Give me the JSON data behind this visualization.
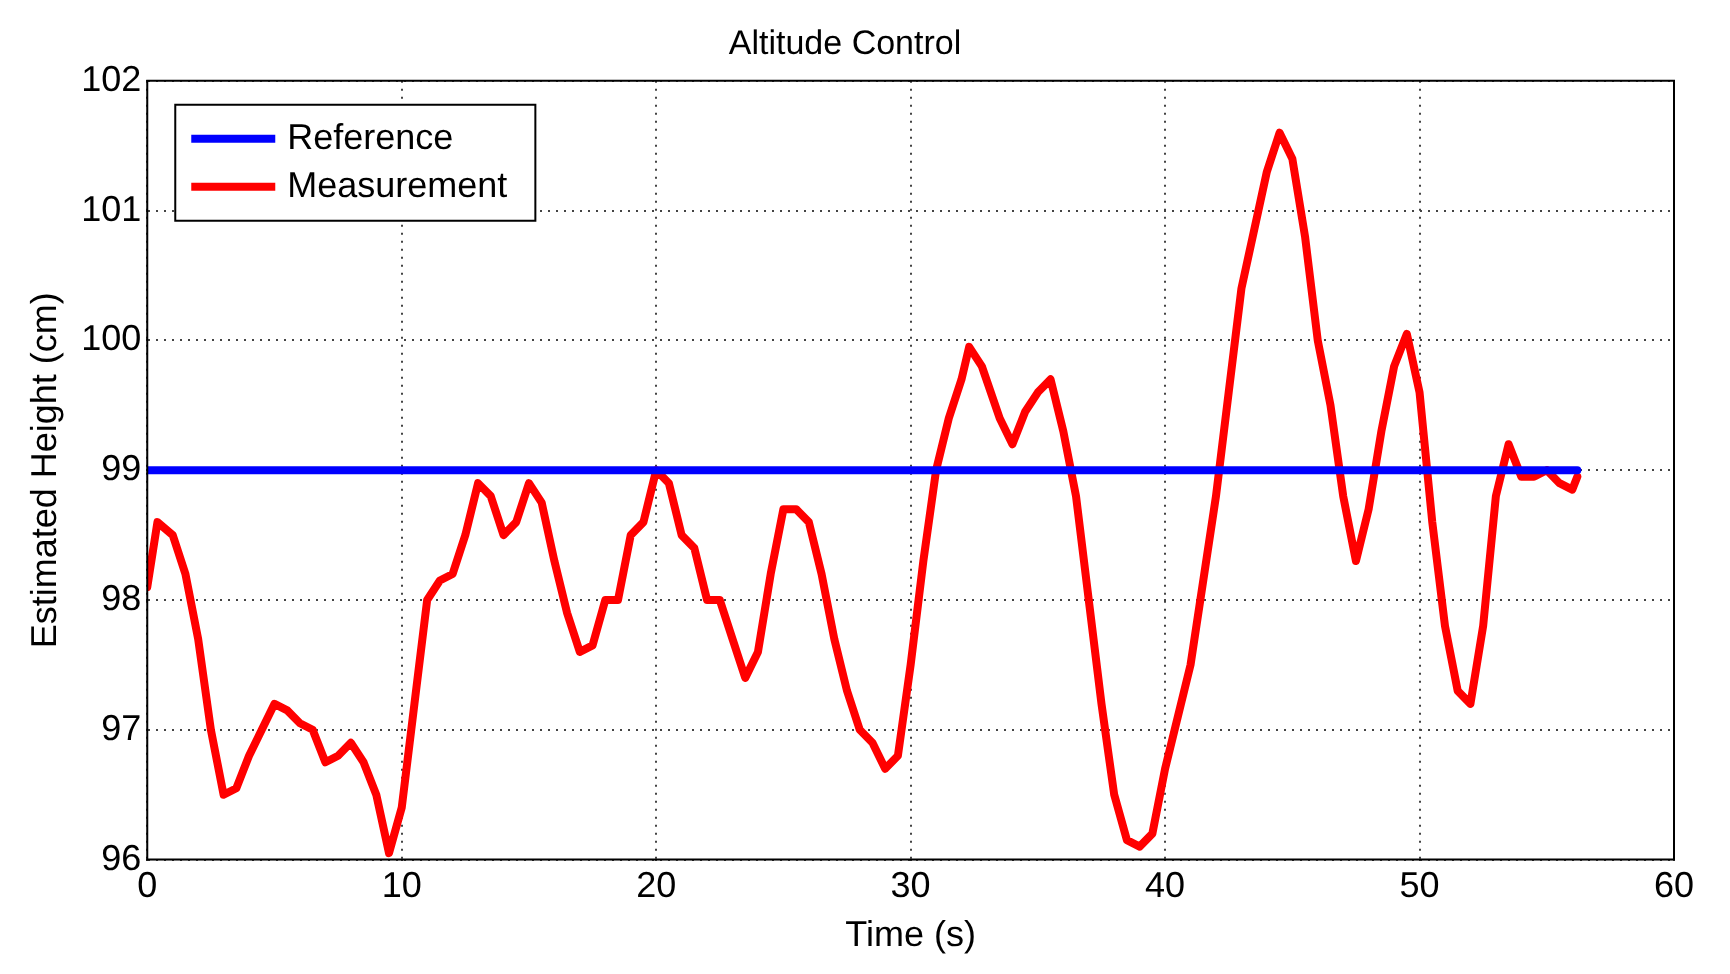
{
  "chart_data": {
    "type": "line",
    "title": "Altitude Control",
    "xlabel": "Time (s)",
    "ylabel": "Estimated Height (cm)",
    "xlim": [
      0,
      60
    ],
    "xticks": [
      0,
      10,
      20,
      30,
      40,
      50,
      60
    ],
    "ylim": [
      96,
      102
    ],
    "yticks": [
      96,
      97,
      98,
      99,
      100,
      101,
      102
    ],
    "grid": true,
    "legend": "top left",
    "marker": "none",
    "line_style": "solid",
    "series": [
      {
        "name": "Reference",
        "color": "#0000ff",
        "x": [
          0,
          56.2
        ],
        "values": [
          99,
          99
        ]
      },
      {
        "name": "Measurement",
        "color": "#ff0000",
        "x": [
          0,
          0.4,
          1,
          1.5,
          2,
          2.5,
          3,
          3.5,
          4,
          4.5,
          5,
          5.5,
          6,
          6.5,
          7,
          7.5,
          8,
          8.5,
          9,
          9.5,
          10,
          10.5,
          11,
          11.5,
          12,
          12.5,
          13,
          13.5,
          14,
          14.5,
          15,
          15.5,
          16,
          16.5,
          17,
          17.5,
          18,
          18.5,
          19,
          19.5,
          20,
          20.5,
          21,
          21.5,
          22,
          22.5,
          23,
          23.5,
          24,
          24.5,
          25,
          25.5,
          26,
          26.5,
          27,
          27.5,
          28,
          28.5,
          29,
          29.5,
          30,
          30.5,
          31,
          31.5,
          32,
          32.3,
          32.8,
          33.5,
          34,
          34.5,
          35,
          35.5,
          36,
          36.5,
          37,
          37.5,
          38,
          38.5,
          39,
          39.5,
          40,
          41,
          42,
          42.5,
          43,
          44,
          44.5,
          45,
          45.5,
          46,
          46.5,
          47,
          47.5,
          48,
          48.5,
          49,
          49.5,
          50,
          50.5,
          51,
          51.5,
          52,
          52.5,
          53,
          53.5,
          54,
          54.5,
          55,
          55.5,
          56,
          56.2
        ],
        "values": [
          98.1,
          98.6,
          98.5,
          98.2,
          97.7,
          97.0,
          96.5,
          96.55,
          96.8,
          97.0,
          97.2,
          97.15,
          97.05,
          97.0,
          96.75,
          96.8,
          96.9,
          96.75,
          96.5,
          96.05,
          96.4,
          97.2,
          98.0,
          98.15,
          98.2,
          98.5,
          98.9,
          98.8,
          98.5,
          98.6,
          98.9,
          98.75,
          98.3,
          97.9,
          97.6,
          97.65,
          98.0,
          98.0,
          98.5,
          98.6,
          99.0,
          98.9,
          98.5,
          98.4,
          98.0,
          98.0,
          97.7,
          97.4,
          97.6,
          98.2,
          98.7,
          98.7,
          98.6,
          98.2,
          97.7,
          97.3,
          97.0,
          96.9,
          96.7,
          96.8,
          97.5,
          98.3,
          99.0,
          99.4,
          99.7,
          99.95,
          99.8,
          99.4,
          99.2,
          99.45,
          99.6,
          99.7,
          99.3,
          98.8,
          98.0,
          97.2,
          96.5,
          96.15,
          96.1,
          96.2,
          96.7,
          97.5,
          98.8,
          99.6,
          100.4,
          101.3,
          101.6,
          101.4,
          100.8,
          100.0,
          99.5,
          98.8,
          98.3,
          98.7,
          99.3,
          99.8,
          100.05,
          99.6,
          98.6,
          97.8,
          97.3,
          97.2,
          97.8,
          98.8,
          99.2,
          98.95,
          98.95,
          99.0,
          98.9,
          98.85,
          98.95
        ]
      }
    ]
  }
}
